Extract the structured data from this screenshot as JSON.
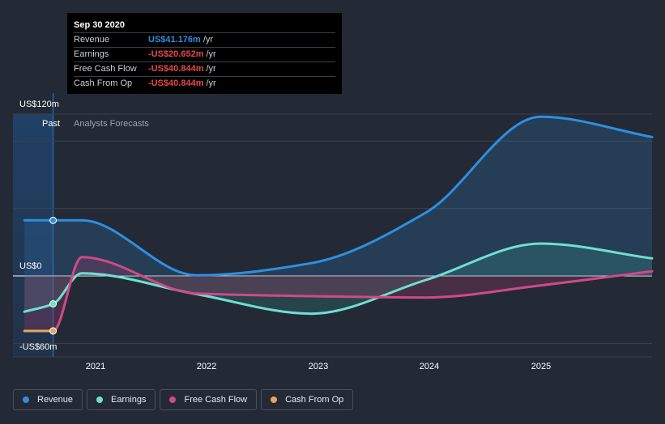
{
  "tooltip": {
    "date": "Sep 30 2020",
    "rows": [
      {
        "label": "Revenue",
        "value": "US$41.176m",
        "unit": "/yr",
        "color": "#2e8fe0"
      },
      {
        "label": "Earnings",
        "value": "-US$20.652m",
        "unit": "/yr",
        "color": "#e84848"
      },
      {
        "label": "Free Cash Flow",
        "value": "-US$40.844m",
        "unit": "/yr",
        "color": "#e84848"
      },
      {
        "label": "Cash From Op",
        "value": "-US$40.844m",
        "unit": "/yr",
        "color": "#e84848"
      }
    ]
  },
  "labels": {
    "past": "Past",
    "forecast": "Analysts Forecasts"
  },
  "legend": [
    {
      "name": "Revenue",
      "color": "#2e8fe0"
    },
    {
      "name": "Earnings",
      "color": "#6ee0cf"
    },
    {
      "name": "Free Cash Flow",
      "color": "#cf4a87"
    },
    {
      "name": "Cash From Op",
      "color": "#e2a55b"
    }
  ],
  "chart_data": {
    "type": "line",
    "title": "",
    "x_domain": [
      2020.4,
      2025.97
    ],
    "y_domain": [
      -60,
      120
    ],
    "ytick_labels": [
      {
        "value": 120,
        "label": "US$120m"
      },
      {
        "value": 0,
        "label": "US$0"
      },
      {
        "value": -60,
        "label": "-US$60m"
      }
    ],
    "gridlines": [
      120,
      100,
      50,
      0,
      -50,
      -60
    ],
    "xticks": [
      {
        "value": 2021,
        "label": "2021"
      },
      {
        "value": 2022,
        "label": "2022"
      },
      {
        "value": 2023,
        "label": "2023"
      },
      {
        "value": 2024,
        "label": "2024"
      },
      {
        "value": 2025,
        "label": "2025"
      }
    ],
    "past_end": 2020.75,
    "series": [
      {
        "name": "Revenue",
        "color": "#2e8fe0",
        "x": [
          2020.5,
          2020.75,
          2021.0,
          2022.0,
          2023.0,
          2024.0,
          2025.0,
          2025.97
        ],
        "y": [
          41.2,
          41.2,
          41.2,
          0.5,
          9.5,
          47.0,
          118.0,
          103.0
        ]
      },
      {
        "name": "Earnings",
        "color": "#6ee0cf",
        "x": [
          2020.5,
          2020.75,
          2021.0,
          2022.0,
          2023.0,
          2024.0,
          2025.0,
          2025.97
        ],
        "y": [
          -26.5,
          -20.7,
          2.0,
          -13.5,
          -28.0,
          -3.0,
          24.0,
          13.0
        ]
      },
      {
        "name": "Free Cash Flow",
        "color": "#cf4a87",
        "x": [
          2020.5,
          2020.75,
          2021.0,
          2022.0,
          2023.0,
          2024.0,
          2025.0,
          2025.97
        ],
        "y": [
          -40.8,
          -40.8,
          14.0,
          -13.0,
          -15.0,
          -16.0,
          -7.0,
          3.5
        ]
      },
      {
        "name": "Cash From Op",
        "color": "#e2a55b",
        "x": [
          2020.5,
          2020.75
        ],
        "y": [
          -40.8,
          -40.8
        ]
      }
    ]
  }
}
